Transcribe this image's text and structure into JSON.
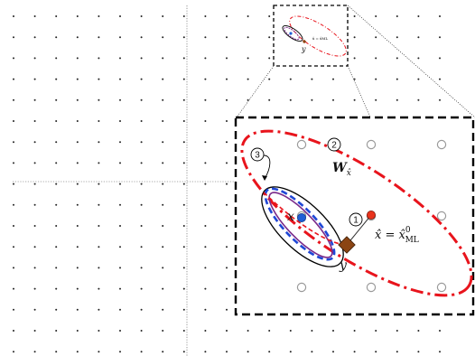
{
  "labels": {
    "x_hat_eq": "x̂ = x̂",
    "x_hat_sup": "0",
    "x_hat_sub": "ML",
    "x": "x",
    "y": "y",
    "w_main": "W",
    "w_sub": "x̂",
    "mini_text": "x̂ = x̂ML",
    "mini_y": "y"
  },
  "markers": [
    "1",
    "2",
    "3"
  ],
  "colors": {
    "grid_dot": "#222222",
    "lattice_circle": "#9a9a9a",
    "red": "#e8141c",
    "blue": "#1f47d6",
    "purple": "#7a2a8a",
    "diamond": "#8b4513",
    "point_x": "#1f5fd6",
    "point_xhat": "#e8331c"
  },
  "icons": {
    "point_x": "blue-dot-icon",
    "point_xhat": "red-dot-icon",
    "point_y": "diamond-icon"
  }
}
